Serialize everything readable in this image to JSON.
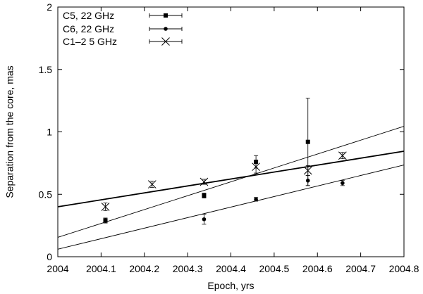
{
  "chart_data": {
    "type": "scatter",
    "title": "",
    "xlabel": "Epoch, yrs",
    "ylabel": "Separation from the core, mas",
    "xlim": [
      2004,
      2004.8
    ],
    "ylim": [
      0,
      2
    ],
    "x_ticks": [
      2004,
      2004.1,
      2004.2,
      2004.3,
      2004.4,
      2004.5,
      2004.6,
      2004.7,
      2004.8
    ],
    "x_tick_labels": [
      "2004",
      "2004.1",
      "2004.2",
      "2004.3",
      "2004.4",
      "2004.5",
      "2004.6",
      "2004.7",
      "2004.8"
    ],
    "y_ticks": [
      0,
      0.5,
      1,
      1.5,
      2
    ],
    "y_tick_labels": [
      "0",
      "0.5",
      "1",
      "1.5",
      "2"
    ],
    "grid": false,
    "legend_position": "top-left",
    "series": [
      {
        "name": "C5, 22 GHz",
        "marker": "square",
        "points": [
          {
            "x": 2004.11,
            "y": 0.29,
            "err": 0.02
          },
          {
            "x": 2004.338,
            "y": 0.49,
            "err": 0.02
          },
          {
            "x": 2004.458,
            "y": 0.76,
            "err": 0.05
          },
          {
            "x": 2004.578,
            "y": 0.92,
            "err": 0.35
          }
        ]
      },
      {
        "name": "C6, 22 GHz",
        "marker": "circle",
        "points": [
          {
            "x": 2004.338,
            "y": 0.3,
            "err": 0.04
          },
          {
            "x": 2004.458,
            "y": 0.46,
            "err": 0.015
          },
          {
            "x": 2004.578,
            "y": 0.61,
            "err": 0.04
          },
          {
            "x": 2004.658,
            "y": 0.59,
            "err": 0.02
          }
        ]
      },
      {
        "name": "C1–2 5 GHz",
        "marker": "cross",
        "points": [
          {
            "x": 2004.11,
            "y": 0.4,
            "err": 0.03
          },
          {
            "x": 2004.218,
            "y": 0.58,
            "err": 0.025
          },
          {
            "x": 2004.338,
            "y": 0.6,
            "err": 0.02
          },
          {
            "x": 2004.458,
            "y": 0.72,
            "err": 0.05
          },
          {
            "x": 2004.578,
            "y": 0.69,
            "err": 0.04
          },
          {
            "x": 2004.658,
            "y": 0.81,
            "err": 0.025
          }
        ]
      }
    ],
    "fit_lines": [
      {
        "bold": true,
        "y_at_xmin": 0.4,
        "y_at_xmax": 0.845
      },
      {
        "bold": false,
        "y_at_xmin": 0.155,
        "y_at_xmax": 1.045
      },
      {
        "bold": false,
        "y_at_xmin": 0.06,
        "y_at_xmax": 0.735
      }
    ]
  }
}
